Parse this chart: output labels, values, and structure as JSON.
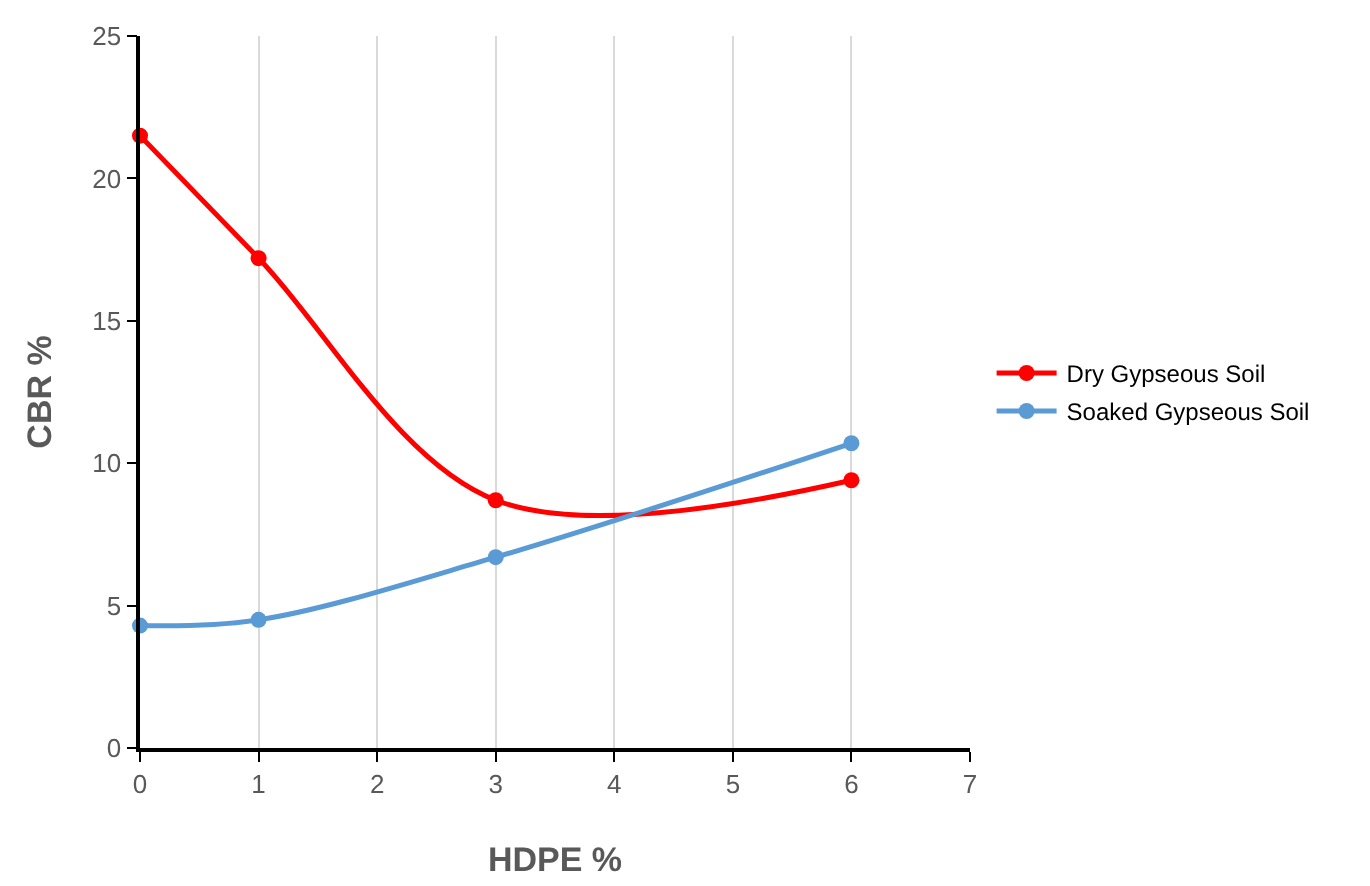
{
  "chart_data": {
    "type": "line",
    "xlabel": "HDPE %",
    "ylabel": "CBR %",
    "xlim": [
      0,
      7
    ],
    "xticks": [
      0,
      1,
      2,
      3,
      4,
      5,
      6,
      7
    ],
    "ylim": [
      0,
      25
    ],
    "yticks": [
      0,
      5,
      10,
      15,
      20,
      25
    ],
    "grid": "x",
    "legend": "right",
    "marker": "circle",
    "line_style": "solid",
    "series": [
      {
        "name": "Dry Gypseous Soil",
        "color": "#ff0000",
        "x": [
          0,
          1,
          3,
          6
        ],
        "values": [
          21.5,
          17.2,
          8.7,
          9.4
        ]
      },
      {
        "name": "Soaked Gypseous Soil",
        "color": "#5b9bd5",
        "x": [
          0,
          1,
          3,
          6
        ],
        "values": [
          4.3,
          4.5,
          6.7,
          10.7
        ]
      }
    ]
  }
}
